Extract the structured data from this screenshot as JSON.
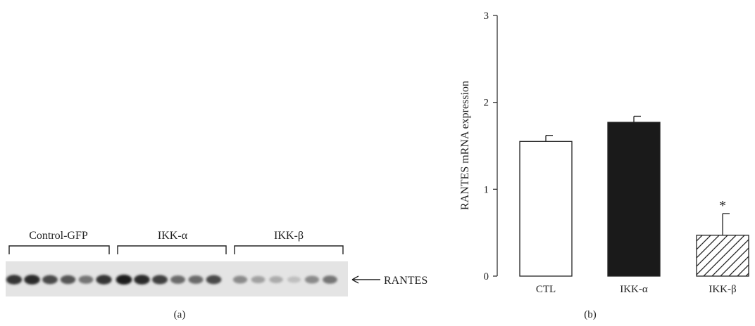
{
  "panel_a": {
    "groups": [
      "Control-GFP",
      "IKK-α",
      "IKK-β"
    ],
    "band_label": "RANTES",
    "lanes_per_group": 6,
    "band_intensity": [
      [
        0.85,
        0.9,
        0.75,
        0.7,
        0.55,
        0.85
      ],
      [
        0.95,
        0.9,
        0.8,
        0.6,
        0.6,
        0.75
      ],
      [
        0.45,
        0.35,
        0.3,
        0.2,
        0.45,
        0.55
      ]
    ],
    "caption": "(a)"
  },
  "chart_data": {
    "type": "bar",
    "categories": [
      "CTL",
      "IKK-α",
      "IKK-β"
    ],
    "values": [
      1.55,
      1.77,
      0.47
    ],
    "errors": [
      0.07,
      0.07,
      0.25
    ],
    "fills": [
      "#ffffff",
      "#1a1a1a",
      "hatch"
    ],
    "annotations": [
      {
        "category": "IKK-β",
        "text": "*"
      }
    ],
    "ylabel": "RANTES mRNA expression",
    "xlabel": "",
    "ylim": [
      0,
      3
    ],
    "yticks": [
      0,
      1,
      2,
      3
    ],
    "caption": "(b)"
  }
}
